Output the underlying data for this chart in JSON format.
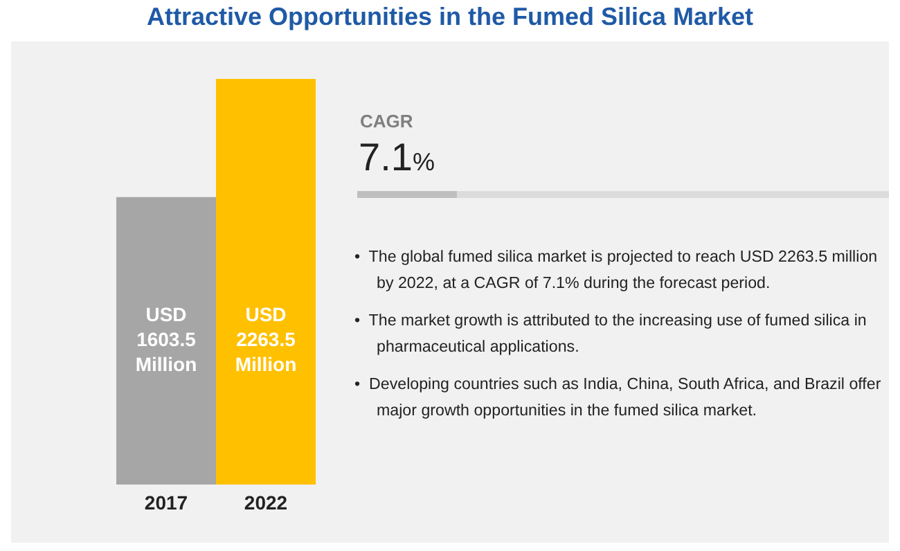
{
  "chart_data": {
    "type": "bar",
    "title": "Attractive Opportunities in the Fumed Silica Market",
    "categories": [
      "2017",
      "2022"
    ],
    "values": [
      1603.5,
      2263.5
    ],
    "colors": [
      "#a6a6a6",
      "#ffc000"
    ],
    "value_labels": [
      "USD 1603.5 Million",
      "USD 2263.5 Million"
    ],
    "annotations": [
      "CAGR",
      "7.1%",
      "•  The global fumed silica market is projected to reach USD 2263.5 million by 2022, at a CAGR of 7.1% during the forecast period.",
      "•  The market growth is attributed to the increasing use of fumed silica in pharmaceutical applications.",
      "•  Developing countries such as India, China, South Africa, and Brazil offer major growth opportunities in the fumed silica market."
    ],
    "grid": false,
    "legend": false
  }
}
